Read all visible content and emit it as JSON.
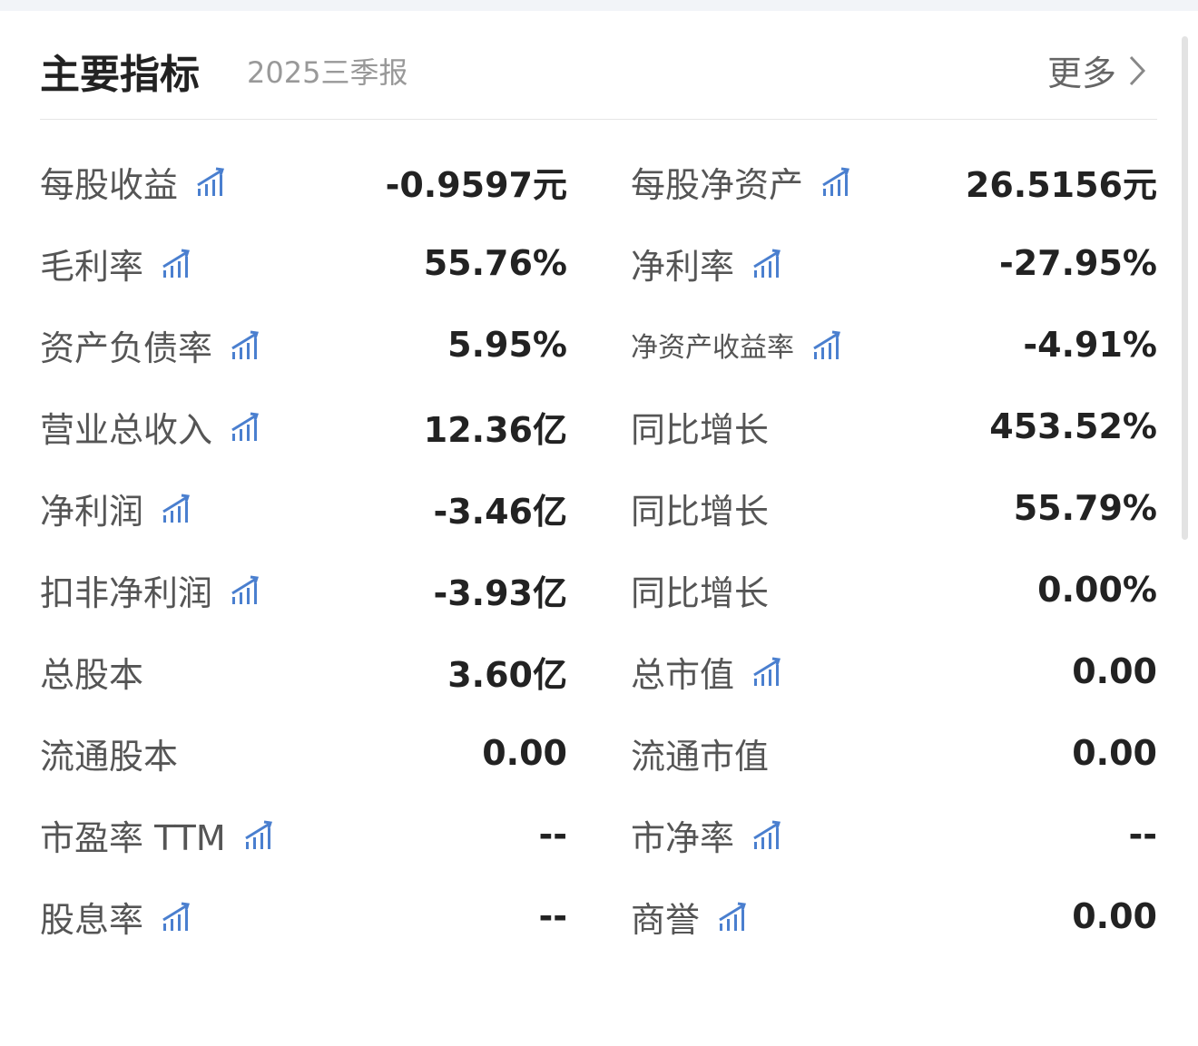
{
  "header": {
    "title": "主要指标",
    "period": "2025三季报",
    "more_label": "更多"
  },
  "colors": {
    "icon": "#4a7fcf",
    "label": "#555555",
    "value": "#222222"
  },
  "rows": [
    {
      "left": {
        "label": "每股收益",
        "icon": true,
        "value": "-0.9597元"
      },
      "right": {
        "label": "每股净资产",
        "icon": true,
        "value": "26.5156元"
      }
    },
    {
      "left": {
        "label": "毛利率",
        "icon": true,
        "value": "55.76%"
      },
      "right": {
        "label": "净利率",
        "icon": true,
        "value": "-27.95%"
      }
    },
    {
      "left": {
        "label": "资产负债率",
        "icon": true,
        "value": "5.95%"
      },
      "right": {
        "label": "净资产收益率",
        "icon": true,
        "value": "-4.91%",
        "small": true
      }
    },
    {
      "left": {
        "label": "营业总收入",
        "icon": true,
        "value": "12.36亿"
      },
      "right": {
        "label": "同比增长",
        "icon": false,
        "value": "453.52%"
      }
    },
    {
      "left": {
        "label": "净利润",
        "icon": true,
        "value": "-3.46亿"
      },
      "right": {
        "label": "同比增长",
        "icon": false,
        "value": "55.79%"
      }
    },
    {
      "left": {
        "label": "扣非净利润",
        "icon": true,
        "value": "-3.93亿"
      },
      "right": {
        "label": "同比增长",
        "icon": false,
        "value": "0.00%"
      }
    },
    {
      "left": {
        "label": "总股本",
        "icon": false,
        "value": "3.60亿"
      },
      "right": {
        "label": "总市值",
        "icon": true,
        "value": "0.00"
      }
    },
    {
      "left": {
        "label": "流通股本",
        "icon": false,
        "value": "0.00"
      },
      "right": {
        "label": "流通市值",
        "icon": false,
        "value": "0.00"
      }
    },
    {
      "left": {
        "label": "市盈率 TTM",
        "icon": true,
        "value": "--"
      },
      "right": {
        "label": "市净率",
        "icon": true,
        "value": "--"
      }
    },
    {
      "left": {
        "label": "股息率",
        "icon": true,
        "value": "--"
      },
      "right": {
        "label": "商誉",
        "icon": true,
        "value": "0.00"
      }
    }
  ]
}
